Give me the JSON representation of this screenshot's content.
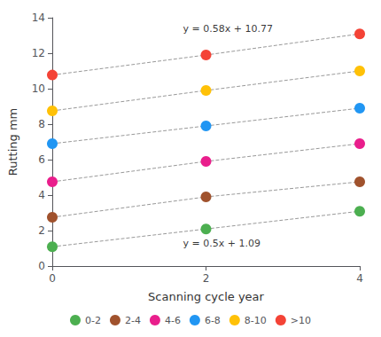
{
  "chart_data": {
    "type": "scatter",
    "x": [
      0,
      2,
      4
    ],
    "series": [
      {
        "name": "0-2",
        "color": "#4caf50",
        "values": [
          1.09,
          2.09,
          3.09
        ]
      },
      {
        "name": "2-4",
        "color": "#a0522d",
        "values": [
          2.75,
          3.9,
          4.75
        ]
      },
      {
        "name": "4-6",
        "color": "#e91e8c",
        "values": [
          4.75,
          5.9,
          6.9
        ]
      },
      {
        "name": "6-8",
        "color": "#2196f3",
        "values": [
          6.9,
          7.9,
          8.9
        ]
      },
      {
        "name": "8-10",
        "color": "#ffc107",
        "values": [
          8.75,
          9.9,
          11.0
        ]
      },
      {
        "name": ">10",
        "color": "#f44336",
        "values": [
          10.77,
          11.9,
          13.09
        ]
      }
    ],
    "annotations": [
      {
        "text": "y = 0.58x + 10.77",
        "x": 1.7,
        "y": 13.4
      },
      {
        "text": "y = 0.5x + 1.09",
        "x": 1.7,
        "y": 1.3
      }
    ],
    "xlabel": "Scanning cycle year",
    "ylabel": "Rutting mm",
    "xlim": [
      0,
      4
    ],
    "ylim": [
      0,
      14
    ],
    "xticks": [
      0,
      2,
      4
    ],
    "yticks": [
      0,
      2,
      4,
      6,
      8,
      10,
      12,
      14
    ],
    "color": "#999999",
    "line_style": "dashed",
    "marker": "circle",
    "grid": false,
    "legend": "bottom"
  }
}
